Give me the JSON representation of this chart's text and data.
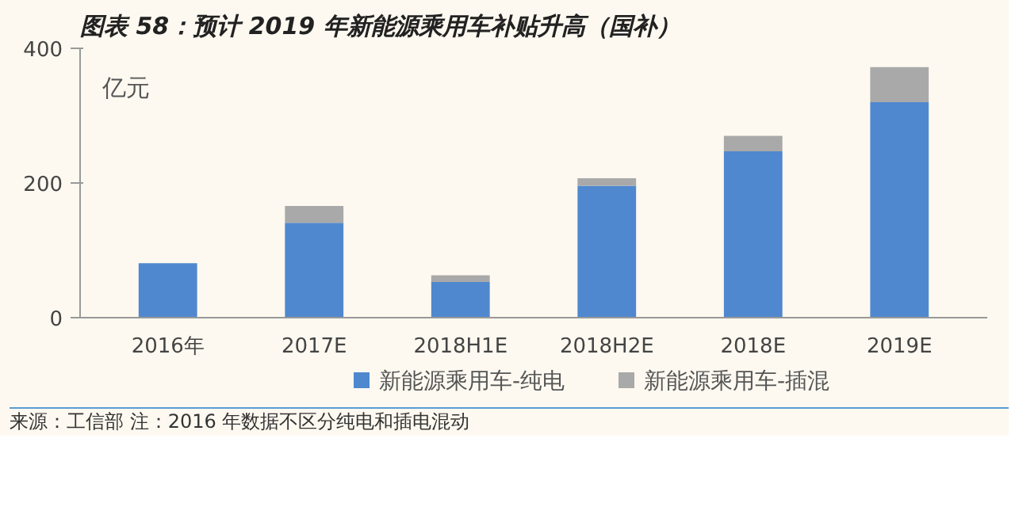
{
  "chart_data": {
    "type": "bar",
    "title": "图表 58：预计 2019 年新能源乘用车补贴升高（国补）",
    "ylabel": "亿元",
    "categories": [
      "2016年",
      "2017E",
      "2018H1E",
      "2018H2E",
      "2018E",
      "2019E"
    ],
    "stacked": true,
    "series": [
      {
        "name": "新能源乘用车-纯电",
        "color": "#4f88cf",
        "values": [
          81,
          141,
          53,
          196,
          247,
          320
        ]
      },
      {
        "name": "新能源乘用车-插混",
        "color": "#a9a9a9",
        "values": [
          null,
          25,
          10,
          11,
          23,
          52
        ]
      }
    ],
    "ylim": [
      0,
      400
    ],
    "yticks": [
      0,
      200,
      400
    ],
    "grid": false,
    "legend": "bottom",
    "annotations": [
      "来源：工信部 注：2016 年数据不区分纯电和插电混动"
    ]
  }
}
